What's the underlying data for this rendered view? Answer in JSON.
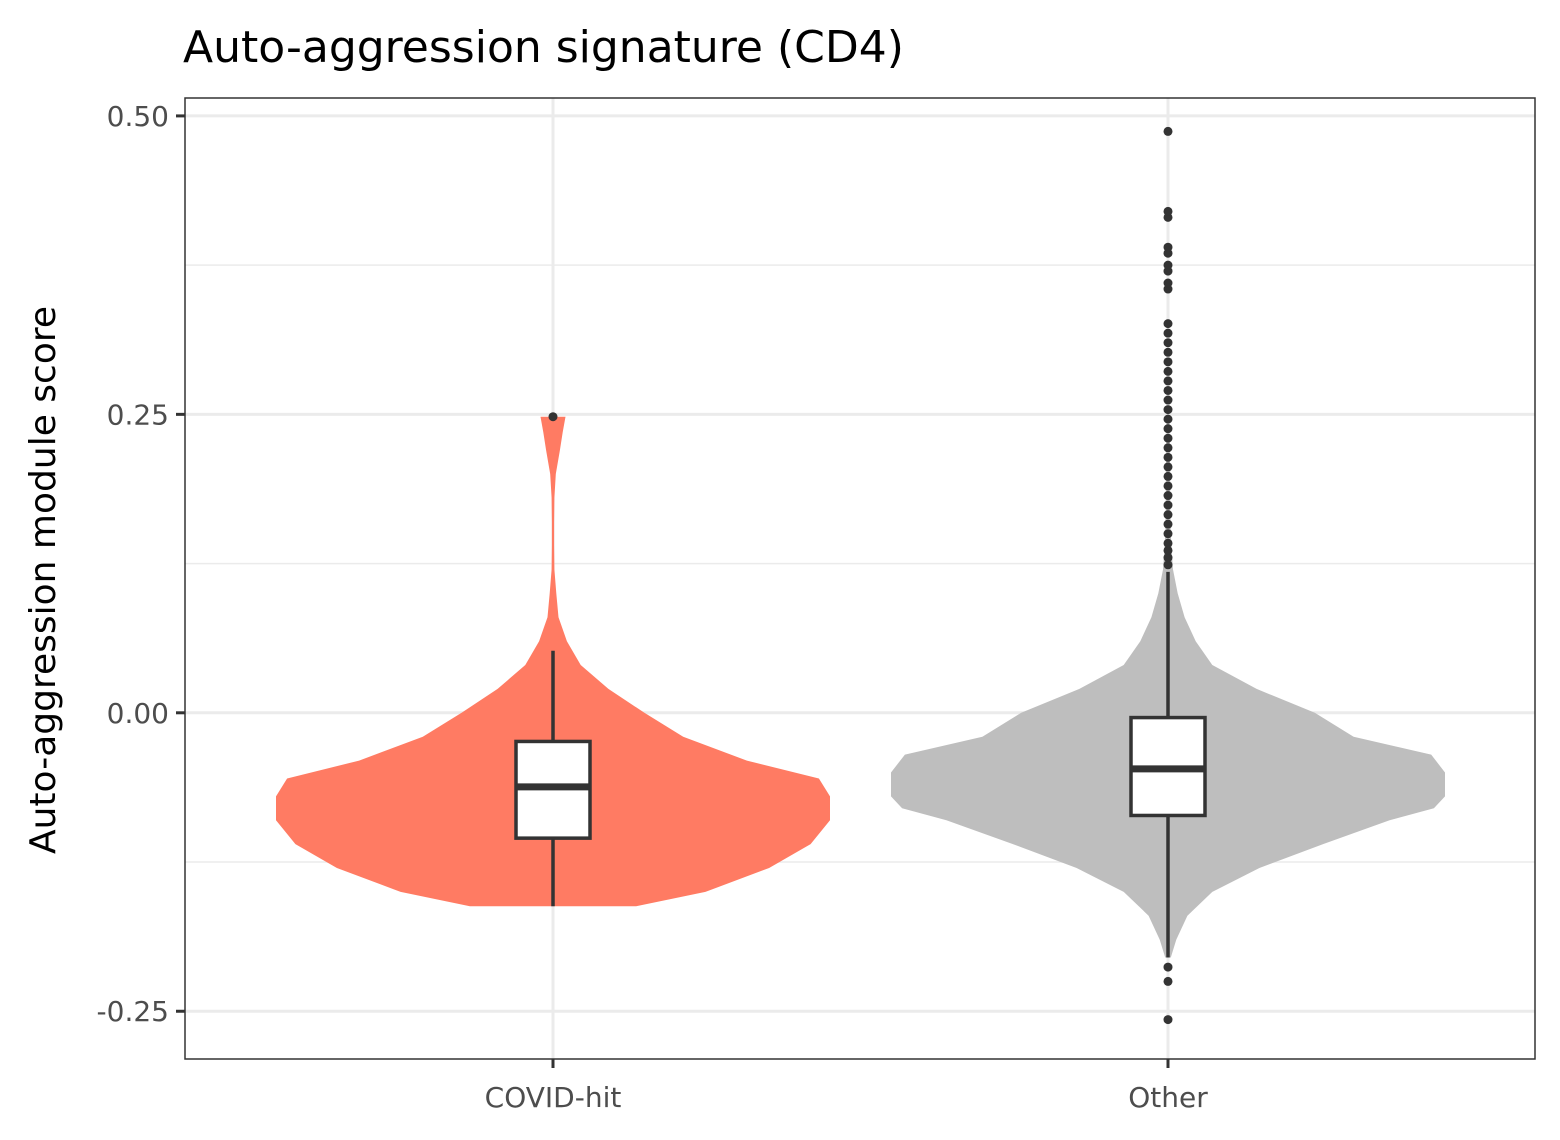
{
  "chart_data": {
    "type": "violin",
    "title": "Auto-aggression signature (CD4)",
    "xlabel": "",
    "ylabel": "Auto-aggression module score",
    "ylim": [
      -0.29,
      0.515
    ],
    "yticks": [
      -0.25,
      0.0,
      0.25,
      0.5
    ],
    "ytick_labels": [
      "-0.25",
      "0.00",
      "0.25",
      "0.50"
    ],
    "categories": [
      "COVID-hit",
      "Other"
    ],
    "grid": true,
    "legend": "none",
    "groups": [
      {
        "name": "COVID-hit",
        "color": "#ff7b63",
        "box": {
          "q1": -0.105,
          "median": -0.062,
          "q3": -0.024,
          "whisker_low": -0.162,
          "whisker_high": 0.052
        },
        "outliers": [
          0.248
        ],
        "violin_range": [
          -0.162,
          0.248
        ],
        "density": [
          [
            -0.162,
            0.3
          ],
          [
            -0.15,
            0.55
          ],
          [
            -0.13,
            0.78
          ],
          [
            -0.11,
            0.93
          ],
          [
            -0.09,
            1.0
          ],
          [
            -0.07,
            1.0
          ],
          [
            -0.055,
            0.96
          ],
          [
            -0.04,
            0.7
          ],
          [
            -0.02,
            0.47
          ],
          [
            0.0,
            0.33
          ],
          [
            0.02,
            0.2
          ],
          [
            0.04,
            0.1
          ],
          [
            0.06,
            0.05
          ],
          [
            0.08,
            0.02
          ],
          [
            0.1,
            0.012
          ],
          [
            0.12,
            0.005
          ],
          [
            0.14,
            0.004
          ],
          [
            0.16,
            0.004
          ],
          [
            0.18,
            0.005
          ],
          [
            0.2,
            0.01
          ],
          [
            0.22,
            0.025
          ],
          [
            0.235,
            0.035
          ],
          [
            0.248,
            0.045
          ]
        ]
      },
      {
        "name": "Other",
        "color": "#bebebe",
        "box": {
          "q1": -0.086,
          "median": -0.047,
          "q3": -0.004,
          "whisker_low": -0.205,
          "whisker_high": 0.118
        },
        "outliers": [
          -0.213,
          -0.225,
          -0.257,
          0.124,
          0.13,
          0.136,
          0.142,
          0.15,
          0.158,
          0.166,
          0.174,
          0.182,
          0.19,
          0.198,
          0.206,
          0.214,
          0.222,
          0.23,
          0.238,
          0.246,
          0.254,
          0.262,
          0.27,
          0.278,
          0.286,
          0.294,
          0.302,
          0.31,
          0.318,
          0.326,
          0.355,
          0.36,
          0.37,
          0.375,
          0.385,
          0.39,
          0.415,
          0.42,
          0.487
        ],
        "violin_range": [
          -0.205,
          0.25
        ],
        "density": [
          [
            -0.205,
            0.01
          ],
          [
            -0.19,
            0.03
          ],
          [
            -0.17,
            0.07
          ],
          [
            -0.15,
            0.16
          ],
          [
            -0.13,
            0.33
          ],
          [
            -0.11,
            0.56
          ],
          [
            -0.09,
            0.8
          ],
          [
            -0.08,
            0.96
          ],
          [
            -0.07,
            1.0
          ],
          [
            -0.05,
            1.0
          ],
          [
            -0.035,
            0.95
          ],
          [
            -0.02,
            0.67
          ],
          [
            0.0,
            0.53
          ],
          [
            0.02,
            0.32
          ],
          [
            0.04,
            0.16
          ],
          [
            0.06,
            0.1
          ],
          [
            0.08,
            0.06
          ],
          [
            0.1,
            0.035
          ],
          [
            0.12,
            0.018
          ],
          [
            0.14,
            0.012
          ],
          [
            0.16,
            0.009
          ],
          [
            0.18,
            0.008
          ],
          [
            0.2,
            0.008
          ],
          [
            0.22,
            0.007
          ],
          [
            0.25,
            0.004
          ]
        ]
      }
    ]
  }
}
